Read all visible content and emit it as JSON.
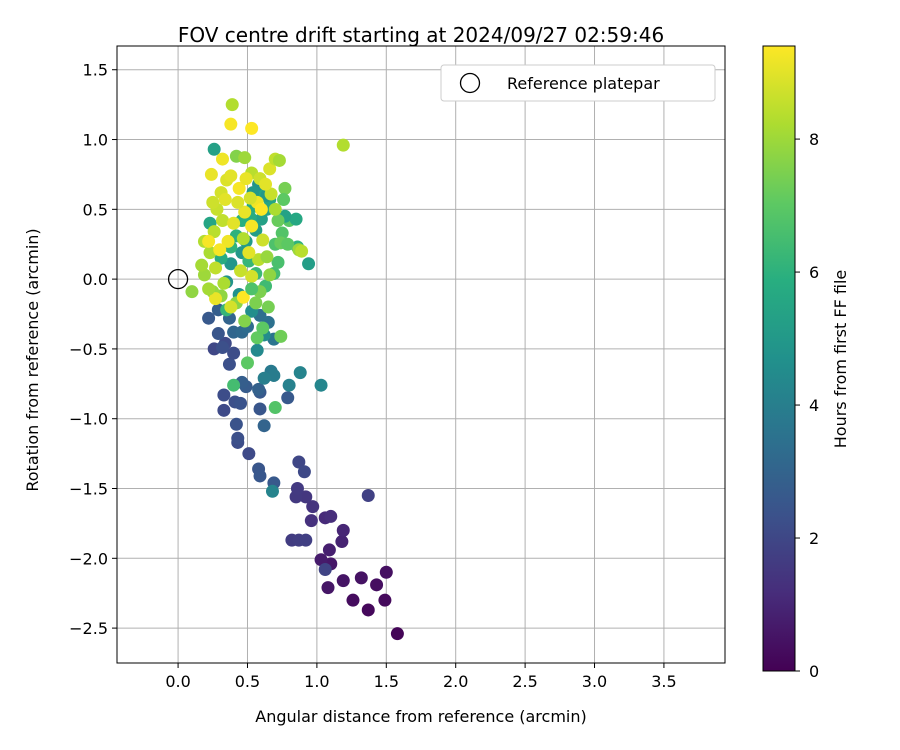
{
  "chart_data": {
    "type": "scatter",
    "title": "FOV centre drift starting at 2024/09/27 02:59:46",
    "xlabel": "Angular distance from reference (arcmin)",
    "ylabel": "Rotation from reference (arcmin)",
    "xlim": [
      -0.44,
      3.94
    ],
    "ylim": [
      -2.75,
      1.67
    ],
    "xticks": [
      0.0,
      0.5,
      1.0,
      1.5,
      2.0,
      2.5,
      3.0,
      3.5
    ],
    "xtick_labels": [
      "0.0",
      "0.5",
      "1.0",
      "1.5",
      "2.0",
      "2.5",
      "3.0",
      "3.5"
    ],
    "yticks": [
      1.5,
      1.0,
      0.5,
      0.0,
      -0.5,
      -1.0,
      -1.5,
      -2.0,
      -2.5
    ],
    "ytick_labels": [
      "1.5",
      "1.0",
      "0.5",
      "0.0",
      "−0.5",
      "−1.0",
      "−1.5",
      "−2.0",
      "−2.5"
    ],
    "grid": true,
    "legend": {
      "position": "top-right",
      "entries": [
        "Reference platepar"
      ]
    },
    "reference_point": {
      "x": 0.0,
      "y": 0.0
    },
    "colorbar": {
      "label": "Hours from first FF file",
      "colormap": "viridis",
      "range": [
        0,
        9.4
      ],
      "ticks": [
        0,
        2,
        4,
        6,
        8
      ],
      "tick_labels": [
        "0",
        "2",
        "4",
        "6",
        "8"
      ]
    },
    "points": [
      {
        "x": 1.58,
        "y": -2.54,
        "c": 0.1
      },
      {
        "x": 1.37,
        "y": -2.37,
        "c": 0.2
      },
      {
        "x": 1.49,
        "y": -2.3,
        "c": 0.25
      },
      {
        "x": 1.26,
        "y": -2.3,
        "c": 0.3
      },
      {
        "x": 1.43,
        "y": -2.19,
        "c": 0.35
      },
      {
        "x": 1.5,
        "y": -2.1,
        "c": 0.4
      },
      {
        "x": 1.32,
        "y": -2.14,
        "c": 0.45
      },
      {
        "x": 1.19,
        "y": -2.16,
        "c": 0.5
      },
      {
        "x": 1.08,
        "y": -2.21,
        "c": 0.55
      },
      {
        "x": 1.1,
        "y": -2.04,
        "c": 0.6
      },
      {
        "x": 1.03,
        "y": -2.01,
        "c": 0.7
      },
      {
        "x": 1.09,
        "y": -1.94,
        "c": 0.8
      },
      {
        "x": 1.18,
        "y": -1.88,
        "c": 0.9
      },
      {
        "x": 1.19,
        "y": -1.8,
        "c": 1.0
      },
      {
        "x": 1.06,
        "y": -1.71,
        "c": 1.1
      },
      {
        "x": 1.1,
        "y": -1.7,
        "c": 1.2
      },
      {
        "x": 0.96,
        "y": -1.73,
        "c": 1.3
      },
      {
        "x": 0.97,
        "y": -1.63,
        "c": 1.4
      },
      {
        "x": 0.92,
        "y": -1.56,
        "c": 1.5
      },
      {
        "x": 0.85,
        "y": -1.56,
        "c": 1.55
      },
      {
        "x": 0.86,
        "y": -1.5,
        "c": 1.6
      },
      {
        "x": 0.82,
        "y": -1.87,
        "c": 1.65
      },
      {
        "x": 0.87,
        "y": -1.87,
        "c": 1.7
      },
      {
        "x": 0.92,
        "y": -1.87,
        "c": 1.75
      },
      {
        "x": 1.37,
        "y": -1.55,
        "c": 1.8
      },
      {
        "x": 1.06,
        "y": -2.08,
        "c": 1.9
      },
      {
        "x": 0.87,
        "y": -1.31,
        "c": 2.0
      },
      {
        "x": 0.91,
        "y": -1.38,
        "c": 2.05
      },
      {
        "x": 0.51,
        "y": -1.25,
        "c": 2.1
      },
      {
        "x": 0.43,
        "y": -1.17,
        "c": 2.2
      },
      {
        "x": 0.43,
        "y": -1.14,
        "c": 2.3
      },
      {
        "x": 0.42,
        "y": -1.04,
        "c": 2.4
      },
      {
        "x": 0.58,
        "y": -1.36,
        "c": 2.5
      },
      {
        "x": 0.59,
        "y": -1.41,
        "c": 2.55
      },
      {
        "x": 0.69,
        "y": -1.46,
        "c": 2.6
      },
      {
        "x": 0.33,
        "y": -0.94,
        "c": 2.1
      },
      {
        "x": 0.33,
        "y": -0.83,
        "c": 2.2
      },
      {
        "x": 0.41,
        "y": -0.88,
        "c": 2.3
      },
      {
        "x": 0.45,
        "y": -0.89,
        "c": 2.4
      },
      {
        "x": 0.59,
        "y": -0.93,
        "c": 2.5
      },
      {
        "x": 0.59,
        "y": -0.81,
        "c": 2.6
      },
      {
        "x": 0.49,
        "y": -0.77,
        "c": 2.7
      },
      {
        "x": 0.46,
        "y": -0.74,
        "c": 2.8
      },
      {
        "x": 0.58,
        "y": -0.79,
        "c": 2.9
      },
      {
        "x": 0.62,
        "y": -1.05,
        "c": 3.0
      },
      {
        "x": 0.79,
        "y": -0.85,
        "c": 2.6
      },
      {
        "x": 0.37,
        "y": -0.61,
        "c": 2.3
      },
      {
        "x": 0.4,
        "y": -0.53,
        "c": 2.2
      },
      {
        "x": 0.34,
        "y": -0.46,
        "c": 2.1
      },
      {
        "x": 0.26,
        "y": -0.5,
        "c": 2.0
      },
      {
        "x": 0.32,
        "y": -0.49,
        "c": 2.3
      },
      {
        "x": 0.29,
        "y": -0.39,
        "c": 2.5
      },
      {
        "x": 0.22,
        "y": -0.28,
        "c": 2.6
      },
      {
        "x": 0.29,
        "y": -0.22,
        "c": 2.8
      },
      {
        "x": 0.37,
        "y": -0.28,
        "c": 3.0
      },
      {
        "x": 0.4,
        "y": -0.38,
        "c": 3.1
      },
      {
        "x": 0.46,
        "y": -0.38,
        "c": 3.2
      },
      {
        "x": 0.5,
        "y": -0.34,
        "c": 3.3
      },
      {
        "x": 0.59,
        "y": -0.26,
        "c": 3.4
      },
      {
        "x": 0.65,
        "y": -0.31,
        "c": 3.5
      },
      {
        "x": 0.69,
        "y": -0.43,
        "c": 3.6
      },
      {
        "x": 0.67,
        "y": -0.66,
        "c": 3.8
      },
      {
        "x": 0.69,
        "y": -0.69,
        "c": 3.9
      },
      {
        "x": 0.62,
        "y": -0.71,
        "c": 4.0
      },
      {
        "x": 0.8,
        "y": -0.76,
        "c": 4.1
      },
      {
        "x": 0.88,
        "y": -0.67,
        "c": 4.2
      },
      {
        "x": 1.03,
        "y": -0.76,
        "c": 4.3
      },
      {
        "x": 0.68,
        "y": -1.52,
        "c": 4.2
      },
      {
        "x": 0.57,
        "y": -0.51,
        "c": 4.4
      },
      {
        "x": 0.62,
        "y": -0.4,
        "c": 4.5
      },
      {
        "x": 0.53,
        "y": -0.23,
        "c": 4.6
      },
      {
        "x": 0.44,
        "y": -0.11,
        "c": 4.7
      },
      {
        "x": 0.35,
        "y": -0.02,
        "c": 4.8
      },
      {
        "x": 0.38,
        "y": 0.11,
        "c": 4.9
      },
      {
        "x": 0.46,
        "y": 0.19,
        "c": 5.0
      },
      {
        "x": 0.49,
        "y": 0.27,
        "c": 5.1
      },
      {
        "x": 0.56,
        "y": 0.35,
        "c": 5.2
      },
      {
        "x": 0.6,
        "y": 0.43,
        "c": 5.3
      },
      {
        "x": 0.64,
        "y": 0.5,
        "c": 5.4
      },
      {
        "x": 0.66,
        "y": 0.57,
        "c": 5.5
      },
      {
        "x": 0.59,
        "y": 0.6,
        "c": 5.6
      },
      {
        "x": 0.54,
        "y": 0.52,
        "c": 5.7
      },
      {
        "x": 0.52,
        "y": 0.44,
        "c": 5.8
      },
      {
        "x": 0.46,
        "y": 0.42,
        "c": 5.9
      },
      {
        "x": 0.42,
        "y": 0.31,
        "c": 6.0
      },
      {
        "x": 0.38,
        "y": 0.23,
        "c": 6.1
      },
      {
        "x": 0.51,
        "y": 0.13,
        "c": 6.2
      },
      {
        "x": 0.56,
        "y": 0.04,
        "c": 6.3
      },
      {
        "x": 0.63,
        "y": -0.05,
        "c": 6.4
      },
      {
        "x": 0.69,
        "y": 0.04,
        "c": 6.5
      },
      {
        "x": 0.72,
        "y": 0.12,
        "c": 6.6
      },
      {
        "x": 0.7,
        "y": 0.25,
        "c": 6.7
      },
      {
        "x": 0.75,
        "y": 0.33,
        "c": 6.8
      },
      {
        "x": 0.8,
        "y": 0.42,
        "c": 6.9
      },
      {
        "x": 0.85,
        "y": 0.43,
        "c": 5.6
      },
      {
        "x": 0.94,
        "y": 0.11,
        "c": 5.2
      },
      {
        "x": 0.86,
        "y": 0.23,
        "c": 6.0
      },
      {
        "x": 0.77,
        "y": 0.45,
        "c": 5.4
      },
      {
        "x": 0.64,
        "y": 0.6,
        "c": 5.0
      },
      {
        "x": 0.58,
        "y": 0.68,
        "c": 4.8
      },
      {
        "x": 0.54,
        "y": 0.62,
        "c": 5.0
      },
      {
        "x": 0.26,
        "y": 0.93,
        "c": 5.3
      },
      {
        "x": 0.23,
        "y": 0.4,
        "c": 5.5
      },
      {
        "x": 0.31,
        "y": 0.15,
        "c": 5.8
      },
      {
        "x": 0.35,
        "y": -0.22,
        "c": 6.2
      },
      {
        "x": 0.4,
        "y": -0.76,
        "c": 6.5
      },
      {
        "x": 0.7,
        "y": -0.92,
        "c": 6.8
      },
      {
        "x": 0.5,
        "y": -0.6,
        "c": 7.0
      },
      {
        "x": 0.57,
        "y": -0.42,
        "c": 7.1
      },
      {
        "x": 0.74,
        "y": -0.41,
        "c": 7.3
      },
      {
        "x": 0.65,
        "y": -0.2,
        "c": 7.4
      },
      {
        "x": 0.59,
        "y": -0.09,
        "c": 7.5
      },
      {
        "x": 0.48,
        "y": -0.3,
        "c": 7.6
      },
      {
        "x": 0.42,
        "y": -0.17,
        "c": 7.7
      },
      {
        "x": 0.31,
        "y": -0.12,
        "c": 7.8
      },
      {
        "x": 0.25,
        "y": -0.09,
        "c": 7.9
      },
      {
        "x": 0.19,
        "y": 0.03,
        "c": 8.0
      },
      {
        "x": 0.17,
        "y": 0.1,
        "c": 8.1
      },
      {
        "x": 0.23,
        "y": 0.19,
        "c": 8.2
      },
      {
        "x": 0.19,
        "y": 0.27,
        "c": 8.3
      },
      {
        "x": 0.26,
        "y": 0.34,
        "c": 8.4
      },
      {
        "x": 0.32,
        "y": 0.42,
        "c": 8.5
      },
      {
        "x": 0.28,
        "y": 0.5,
        "c": 8.6
      },
      {
        "x": 0.25,
        "y": 0.55,
        "c": 8.7
      },
      {
        "x": 0.31,
        "y": 0.62,
        "c": 8.8
      },
      {
        "x": 0.35,
        "y": 0.71,
        "c": 8.9
      },
      {
        "x": 0.38,
        "y": 0.74,
        "c": 9.0
      },
      {
        "x": 0.24,
        "y": 0.75,
        "c": 9.1
      },
      {
        "x": 0.32,
        "y": 0.86,
        "c": 9.2
      },
      {
        "x": 0.38,
        "y": 1.11,
        "c": 9.3
      },
      {
        "x": 0.53,
        "y": 1.08,
        "c": 9.4
      },
      {
        "x": 0.39,
        "y": 1.25,
        "c": 8.3
      },
      {
        "x": 0.42,
        "y": 0.88,
        "c": 7.6
      },
      {
        "x": 0.48,
        "y": 0.87,
        "c": 8.0
      },
      {
        "x": 0.53,
        "y": 0.76,
        "c": 8.4
      },
      {
        "x": 0.59,
        "y": 0.72,
        "c": 8.7
      },
      {
        "x": 0.66,
        "y": 0.79,
        "c": 8.9
      },
      {
        "x": 0.7,
        "y": 0.86,
        "c": 8.5
      },
      {
        "x": 0.73,
        "y": 0.85,
        "c": 8.1
      },
      {
        "x": 0.77,
        "y": 0.65,
        "c": 7.4
      },
      {
        "x": 0.76,
        "y": 0.57,
        "c": 7.0
      },
      {
        "x": 0.72,
        "y": 0.42,
        "c": 7.2
      },
      {
        "x": 0.7,
        "y": 0.5,
        "c": 8.2
      },
      {
        "x": 0.67,
        "y": 0.61,
        "c": 8.6
      },
      {
        "x": 0.63,
        "y": 0.68,
        "c": 9.0
      },
      {
        "x": 0.57,
        "y": 0.55,
        "c": 9.2
      },
      {
        "x": 0.53,
        "y": 0.38,
        "c": 9.3
      },
      {
        "x": 0.48,
        "y": 0.48,
        "c": 9.1
      },
      {
        "x": 0.43,
        "y": 0.55,
        "c": 8.9
      },
      {
        "x": 0.4,
        "y": 0.4,
        "c": 9.0
      },
      {
        "x": 0.36,
        "y": 0.27,
        "c": 9.2
      },
      {
        "x": 0.3,
        "y": 0.21,
        "c": 9.3
      },
      {
        "x": 0.22,
        "y": 0.27,
        "c": 9.3
      },
      {
        "x": 0.27,
        "y": 0.08,
        "c": 8.5
      },
      {
        "x": 0.33,
        "y": -0.03,
        "c": 8.2
      },
      {
        "x": 0.38,
        "y": -0.2,
        "c": 8.8
      },
      {
        "x": 0.27,
        "y": -0.14,
        "c": 9.1
      },
      {
        "x": 0.47,
        "y": -0.13,
        "c": 9.4
      },
      {
        "x": 0.53,
        "y": 0.02,
        "c": 8.8
      },
      {
        "x": 0.58,
        "y": 0.14,
        "c": 8.4
      },
      {
        "x": 0.66,
        "y": 0.03,
        "c": 7.8
      },
      {
        "x": 0.74,
        "y": 0.26,
        "c": 7.2
      },
      {
        "x": 0.79,
        "y": 0.25,
        "c": 7.0
      },
      {
        "x": 0.87,
        "y": 0.21,
        "c": 8.0
      },
      {
        "x": 0.89,
        "y": 0.2,
        "c": 8.4
      },
      {
        "x": 1.19,
        "y": 0.96,
        "c": 8.3
      },
      {
        "x": 0.1,
        "y": -0.09,
        "c": 7.8
      },
      {
        "x": 0.22,
        "y": -0.07,
        "c": 8.1
      },
      {
        "x": 0.45,
        "y": 0.06,
        "c": 8.6
      },
      {
        "x": 0.51,
        "y": 0.19,
        "c": 9.0
      },
      {
        "x": 0.61,
        "y": 0.28,
        "c": 8.7
      },
      {
        "x": 0.64,
        "y": 0.16,
        "c": 7.9
      },
      {
        "x": 0.44,
        "y": 0.65,
        "c": 9.3
      },
      {
        "x": 0.49,
        "y": 0.72,
        "c": 9.1
      },
      {
        "x": 0.52,
        "y": 0.58,
        "c": 8.8
      },
      {
        "x": 0.34,
        "y": 0.57,
        "c": 9.0
      },
      {
        "x": 0.6,
        "y": 0.5,
        "c": 9.4
      },
      {
        "x": 0.47,
        "y": 0.29,
        "c": 8.3
      },
      {
        "x": 0.56,
        "y": -0.17,
        "c": 7.5
      },
      {
        "x": 0.61,
        "y": -0.35,
        "c": 7.0
      },
      {
        "x": 0.53,
        "y": -0.07,
        "c": 6.7
      }
    ]
  }
}
